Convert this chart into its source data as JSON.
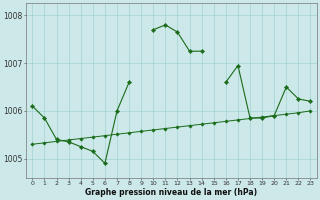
{
  "xlabel": "Graphe pression niveau de la mer (hPa)",
  "bg_color": "#cce8e8",
  "line_color": "#1a6b1a",
  "grid_color": "#99cccc",
  "x_values": [
    0,
    1,
    2,
    3,
    4,
    5,
    6,
    7,
    8,
    9,
    10,
    11,
    12,
    13,
    14,
    15,
    16,
    17,
    18,
    19,
    20,
    21,
    22,
    23
  ],
  "series1": [
    1006.1,
    1005.85,
    1005.4,
    1005.35,
    1005.25,
    1005.15,
    1004.9,
    1006.0,
    1006.6,
    null,
    1007.7,
    1007.8,
    1007.65,
    1007.25,
    1007.25,
    null,
    1006.6,
    1006.95,
    1005.85,
    1005.85,
    1005.9,
    1006.5,
    1006.25,
    1006.2
  ],
  "series2": [
    1005.3,
    1005.33,
    1005.36,
    1005.39,
    1005.42,
    1005.45,
    1005.48,
    1005.51,
    1005.54,
    1005.57,
    1005.6,
    1005.63,
    1005.66,
    1005.69,
    1005.72,
    1005.75,
    1005.78,
    1005.81,
    1005.84,
    1005.87,
    1005.9,
    1005.93,
    1005.96,
    1006.0
  ],
  "ylim": [
    1004.6,
    1008.25
  ],
  "yticks": [
    1005,
    1006,
    1007,
    1008
  ],
  "xticks": [
    0,
    1,
    2,
    3,
    4,
    5,
    6,
    7,
    8,
    9,
    10,
    11,
    12,
    13,
    14,
    15,
    16,
    17,
    18,
    19,
    20,
    21,
    22,
    23
  ],
  "figsize": [
    3.2,
    2.0
  ],
  "dpi": 100
}
